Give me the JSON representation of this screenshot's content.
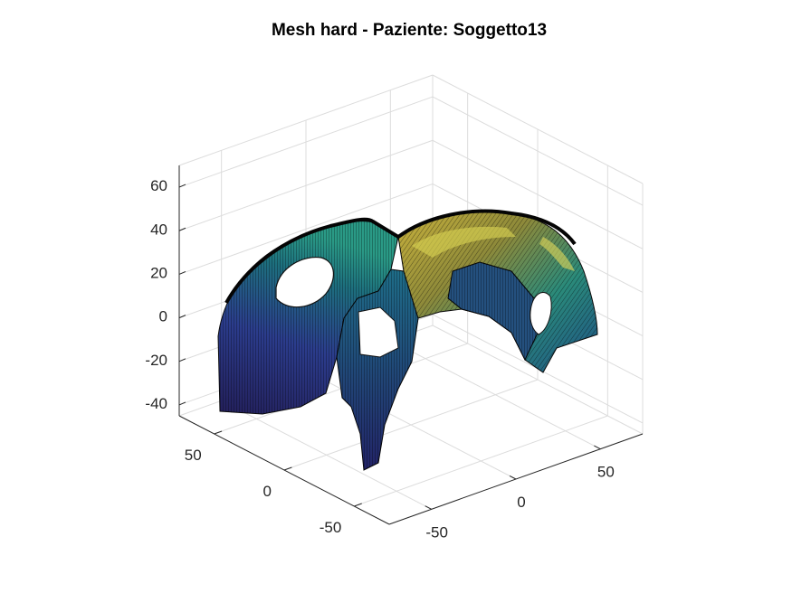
{
  "chart_data": {
    "type": "surface",
    "title": "Mesh hard - Paziente: Soggetto13",
    "xlabel": "",
    "ylabel": "",
    "zlabel": "",
    "view": "3d-isometric",
    "grid": true,
    "colormap": "parula-dark",
    "colors": {
      "grid": "#dcdcdc",
      "axis": "#262626",
      "edge": "#000000",
      "low": "#2a2a78",
      "mid": "#1f8a8a",
      "high": "#d8d04a"
    },
    "x_axis": {
      "ticks": [
        {
          "value": -50,
          "label": "-50"
        },
        {
          "value": 0,
          "label": "0"
        },
        {
          "value": 50,
          "label": "50"
        }
      ],
      "range": [
        -75,
        75
      ]
    },
    "y_axis": {
      "ticks": [
        {
          "value": -50,
          "label": "-50"
        },
        {
          "value": 0,
          "label": "0"
        },
        {
          "value": 50,
          "label": "50"
        }
      ],
      "range": [
        -75,
        75
      ]
    },
    "z_axis": {
      "ticks": [
        {
          "value": -40,
          "label": "-40"
        },
        {
          "value": -20,
          "label": "-20"
        },
        {
          "value": 0,
          "label": "0"
        },
        {
          "value": 20,
          "label": "20"
        },
        {
          "value": 40,
          "label": "40"
        },
        {
          "value": 60,
          "label": "60"
        }
      ],
      "range": [
        -45,
        70
      ]
    }
  }
}
